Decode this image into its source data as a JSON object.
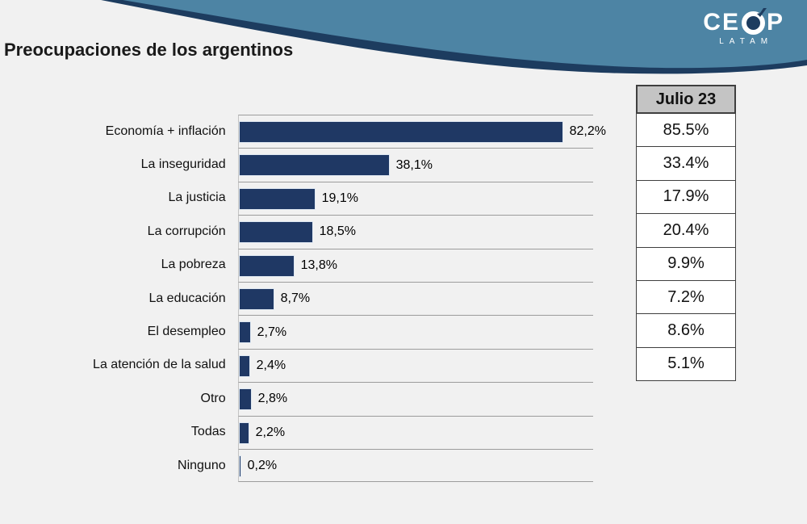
{
  "title": "Preocupaciones de los argentinos",
  "logo": {
    "part1": "CE",
    "part2": "P",
    "sub": "LATAM",
    "o_mark": "ceop-o-ring-with-check"
  },
  "colors": {
    "background": "#f1f1f1",
    "wave_blue": "#4d84a4",
    "wave_navy_edge": "#1d3c5f",
    "bar": "#1f3864",
    "gridline": "#9c9c9c",
    "table_header_bg": "#c4c4c4",
    "table_border": "#3f3f3f"
  },
  "chart_data": {
    "type": "bar",
    "orientation": "horizontal",
    "title": "Preocupaciones de los argentinos",
    "grid": "row-separator-lines",
    "xlim": [
      0,
      90
    ],
    "categories": [
      "Economía + inflación",
      "La inseguridad",
      "La justicia",
      "La corrupción",
      "La pobreza",
      "La educación",
      "El desempleo",
      "La atención de la salud",
      "Otro",
      "Todas",
      "Ninguno"
    ],
    "values": [
      82.2,
      38.1,
      19.1,
      18.5,
      13.8,
      8.7,
      2.7,
      2.4,
      2.8,
      2.2,
      0.2
    ],
    "value_labels": [
      "82,2%",
      "38,1%",
      "19,1%",
      "18,5%",
      "13,8%",
      "8,7%",
      "2,7%",
      "2,4%",
      "2,8%",
      "2,2%",
      "0,2%"
    ],
    "comparison": {
      "header": "Julio 23",
      "values": [
        "85.5%",
        "33.4%",
        "17.9%",
        "20.4%",
        "9.9%",
        "7.2%",
        "8.6%",
        "5.1%"
      ],
      "note_values_numeric": [
        85.5,
        33.4,
        17.9,
        20.4,
        9.9,
        7.2,
        8.6,
        5.1
      ]
    }
  }
}
